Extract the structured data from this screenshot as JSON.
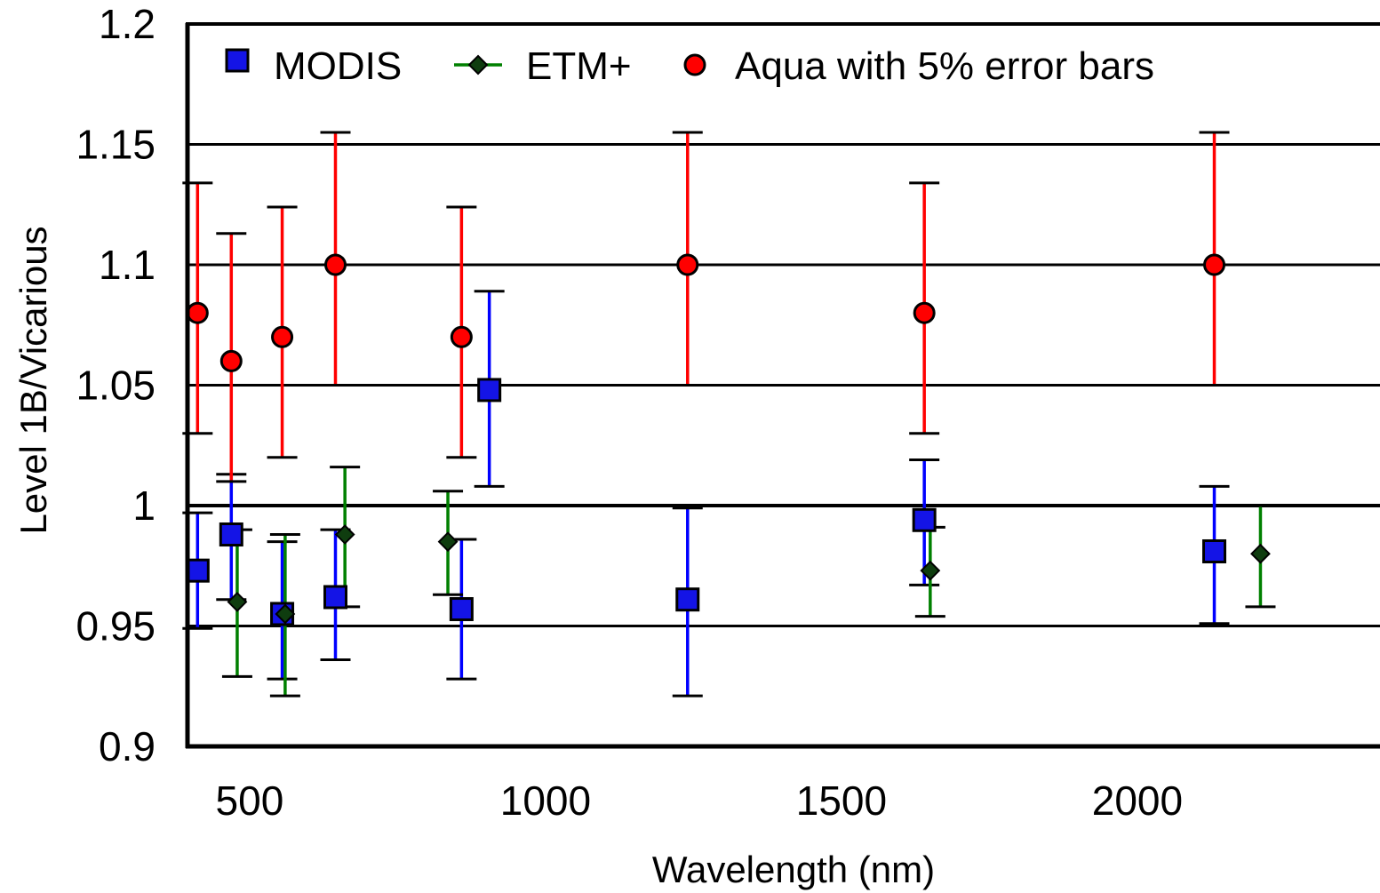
{
  "chart_data": {
    "type": "scatter",
    "title": "",
    "xlabel": "Wavelength (nm)",
    "ylabel": "Level 1B/Vicarious",
    "xlim": [
      395,
      2410
    ],
    "ylim": [
      0.9,
      1.2
    ],
    "xticks": [
      500,
      1000,
      1500,
      2000
    ],
    "xtick_labels": [
      "500",
      "1000",
      "1500",
      "2000"
    ],
    "yticks": [
      0.9,
      0.95,
      1.0,
      1.05,
      1.1,
      1.15,
      1.2
    ],
    "ytick_labels": [
      "0.9",
      "0.95",
      "1",
      "1.05",
      "1.1",
      "1.15",
      "1.2"
    ],
    "grid": "horizontal",
    "legend": "top",
    "series": [
      {
        "name": "MODIS",
        "marker": "square",
        "marker_color": "#1414e6",
        "error_color": "#0000ff",
        "points": [
          {
            "x": 412,
            "y": 0.973,
            "err_low": 0.949,
            "err_high": 0.997
          },
          {
            "x": 469,
            "y": 0.988,
            "err_low": 0.961,
            "err_high": 1.013
          },
          {
            "x": 555,
            "y": 0.955,
            "err_low": 0.928,
            "err_high": 0.985
          },
          {
            "x": 645,
            "y": 0.962,
            "err_low": 0.936,
            "err_high": 0.99
          },
          {
            "x": 858,
            "y": 0.957,
            "err_low": 0.928,
            "err_high": 0.986
          },
          {
            "x": 905,
            "y": 1.048,
            "err_low": 1.008,
            "err_high": 1.089
          },
          {
            "x": 1240,
            "y": 0.961,
            "err_low": 0.921,
            "err_high": 0.999
          },
          {
            "x": 1640,
            "y": 0.994,
            "err_low": 0.967,
            "err_high": 1.019
          },
          {
            "x": 2130,
            "y": 0.981,
            "err_low": 0.951,
            "err_high": 1.008
          }
        ]
      },
      {
        "name": "ETM+",
        "marker": "diamond",
        "marker_color": "#0f3d0f",
        "error_color": "#008000",
        "points": [
          {
            "x": 479,
            "y": 0.96,
            "err_low": 0.929,
            "err_high": 0.99
          },
          {
            "x": 560,
            "y": 0.955,
            "err_low": 0.921,
            "err_high": 0.988
          },
          {
            "x": 661,
            "y": 0.988,
            "err_low": 0.958,
            "err_high": 1.016
          },
          {
            "x": 835,
            "y": 0.985,
            "err_low": 0.963,
            "err_high": 1.006
          },
          {
            "x": 1650,
            "y": 0.973,
            "err_low": 0.954,
            "err_high": 0.991
          },
          {
            "x": 2208,
            "y": 0.98,
            "err_low": 0.958,
            "err_high": 1.0
          }
        ]
      },
      {
        "name": "Aqua with 5% error bars",
        "marker": "circle",
        "marker_color": "#ff0000",
        "error_color": "#ff0000",
        "points": [
          {
            "x": 412,
            "y": 1.08,
            "err_low": 1.03,
            "err_high": 1.134
          },
          {
            "x": 469,
            "y": 1.06,
            "err_low": 1.01,
            "err_high": 1.113
          },
          {
            "x": 555,
            "y": 1.07,
            "err_low": 1.02,
            "err_high": 1.124
          },
          {
            "x": 645,
            "y": 1.1,
            "err_low": 1.05,
            "err_high": 1.155
          },
          {
            "x": 858,
            "y": 1.07,
            "err_low": 1.02,
            "err_high": 1.124
          },
          {
            "x": 1240,
            "y": 1.1,
            "err_low": 1.05,
            "err_high": 1.155
          },
          {
            "x": 1640,
            "y": 1.08,
            "err_low": 1.03,
            "err_high": 1.134
          },
          {
            "x": 2130,
            "y": 1.1,
            "err_low": 1.05,
            "err_high": 1.155
          }
        ]
      }
    ]
  }
}
